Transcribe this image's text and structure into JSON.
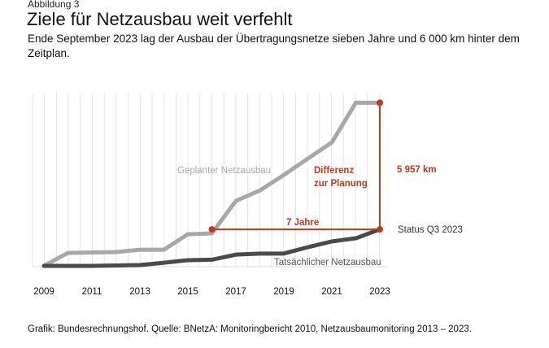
{
  "figure_label": "Abbildung 3",
  "title": "Ziele für Netzausbau weit verfehlt",
  "subtitle": "Ende September 2023 lag der Ausbau der Übertragungsnetze sieben Jahre und 6 000 km hinter dem Zeitplan.",
  "source": "Grafik: Bundesrechnungshof. Quelle: BNetzA: Monitoringbericht 2010, Netzausbaumonitoring 2013 – 2023.",
  "colors": {
    "planned": "#a8a8a8",
    "actual": "#4a4a4a",
    "accent": "#c0391b",
    "grid": "#e4e4e4"
  },
  "chart_data": {
    "type": "line",
    "x": [
      2009,
      2010,
      2011,
      2012,
      2013,
      2014,
      2015,
      2016,
      2017,
      2018,
      2019,
      2020,
      2021,
      2022,
      2023
    ],
    "xticks": [
      "2009",
      "2011",
      "2013",
      "2015",
      "2017",
      "2019",
      "2021",
      "2023"
    ],
    "ylim": [
      0,
      8000
    ],
    "grid": "vertical",
    "series": [
      {
        "name": "Geplanter Netzausbau",
        "values": [
          0,
          610,
          630,
          650,
          760,
          760,
          1490,
          1530,
          3060,
          3550,
          4280,
          5050,
          5810,
          7680,
          7680
        ]
      },
      {
        "name": "Tatsächlicher Netzausbau",
        "values": [
          0,
          0,
          0,
          20,
          40,
          150,
          270,
          290,
          530,
          580,
          580,
          880,
          1150,
          1300,
          1720
        ]
      }
    ],
    "annotations": {
      "horizontal_label": "7 Jahre",
      "vertical_label_line1": "Differenz",
      "vertical_label_line2": "zur Planung",
      "difference_value": "5 957 km",
      "status_label": "Status Q3 2023"
    }
  }
}
